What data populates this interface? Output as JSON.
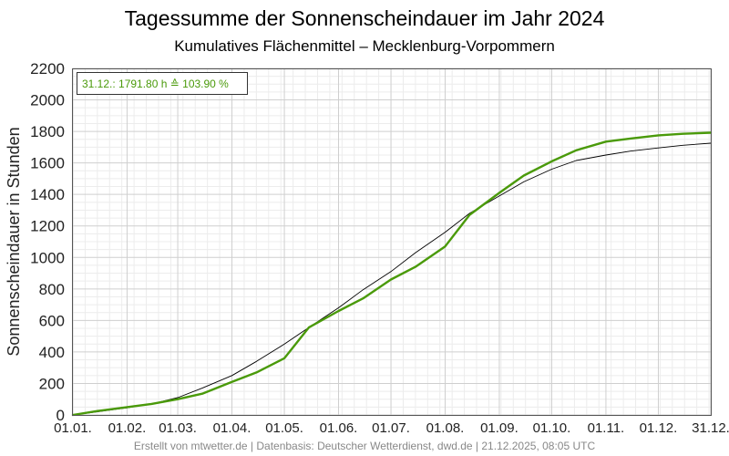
{
  "chart_data": {
    "type": "line",
    "title": "Tagessumme der Sonnenscheindauer im Jahr 2024",
    "subtitle": "Kumulatives Flächenmittel – Mecklenburg-Vorpommern",
    "ylabel": "Sonnenscheindauer in Stunden",
    "xlabel": "",
    "ylim": [
      0,
      2200
    ],
    "yticks": [
      0,
      200,
      400,
      600,
      800,
      1000,
      1200,
      1400,
      1600,
      1800,
      2000,
      2200
    ],
    "xlim": [
      "01.01.",
      "31.12."
    ],
    "xticks": [
      "01.01.",
      "01.02.",
      "01.03.",
      "01.04.",
      "01.05.",
      "01.06.",
      "01.07.",
      "01.08.",
      "01.09.",
      "01.10.",
      "01.11.",
      "01.12.",
      "31.12."
    ],
    "grid": true,
    "annotation": "31.12.: 1791.80 h ≙ 103.90 %",
    "annotation_placement": "top-left",
    "colors": {
      "series_2024": "#4a9a0a",
      "series_mean": "#000000",
      "annotation": "#4a9a0a",
      "grid_major": "#cfcfcf",
      "grid_minor": "#ececec"
    },
    "series": [
      {
        "x": [
          "01.01.",
          "15.01.",
          "01.02.",
          "15.02.",
          "01.03.",
          "15.03.",
          "01.04.",
          "15.04.",
          "01.05.",
          "15.05.",
          "01.06.",
          "15.06.",
          "01.07.",
          "15.07.",
          "01.08.",
          "15.08.",
          "01.09.",
          "15.09.",
          "01.10.",
          "15.10.",
          "01.11.",
          "15.11.",
          "01.12.",
          "15.12.",
          "31.12."
        ],
        "values": [
          0,
          25,
          50,
          70,
          100,
          135,
          210,
          270,
          360,
          555,
          660,
          740,
          860,
          940,
          1070,
          1270,
          1410,
          1520,
          1610,
          1680,
          1735,
          1755,
          1775,
          1785,
          1792
        ]
      },
      {
        "x": [
          "01.01.",
          "15.01.",
          "01.02.",
          "15.02.",
          "01.03.",
          "15.03.",
          "01.04.",
          "15.04.",
          "01.05.",
          "15.05.",
          "01.06.",
          "15.06.",
          "01.07.",
          "15.07.",
          "01.08.",
          "15.08.",
          "01.09.",
          "15.09.",
          "01.10.",
          "15.10.",
          "01.11.",
          "15.11.",
          "01.12.",
          "15.12.",
          "31.12."
        ],
        "values": [
          0,
          20,
          45,
          70,
          110,
          170,
          250,
          340,
          450,
          555,
          680,
          795,
          910,
          1030,
          1160,
          1280,
          1390,
          1480,
          1560,
          1615,
          1650,
          1675,
          1695,
          1712,
          1725
        ]
      }
    ]
  },
  "footer": "Erstellt von mtwetter.de | Datenbasis: Deutscher Wetterdienst, dwd.de | 21.12.2025, 08:05 UTC"
}
